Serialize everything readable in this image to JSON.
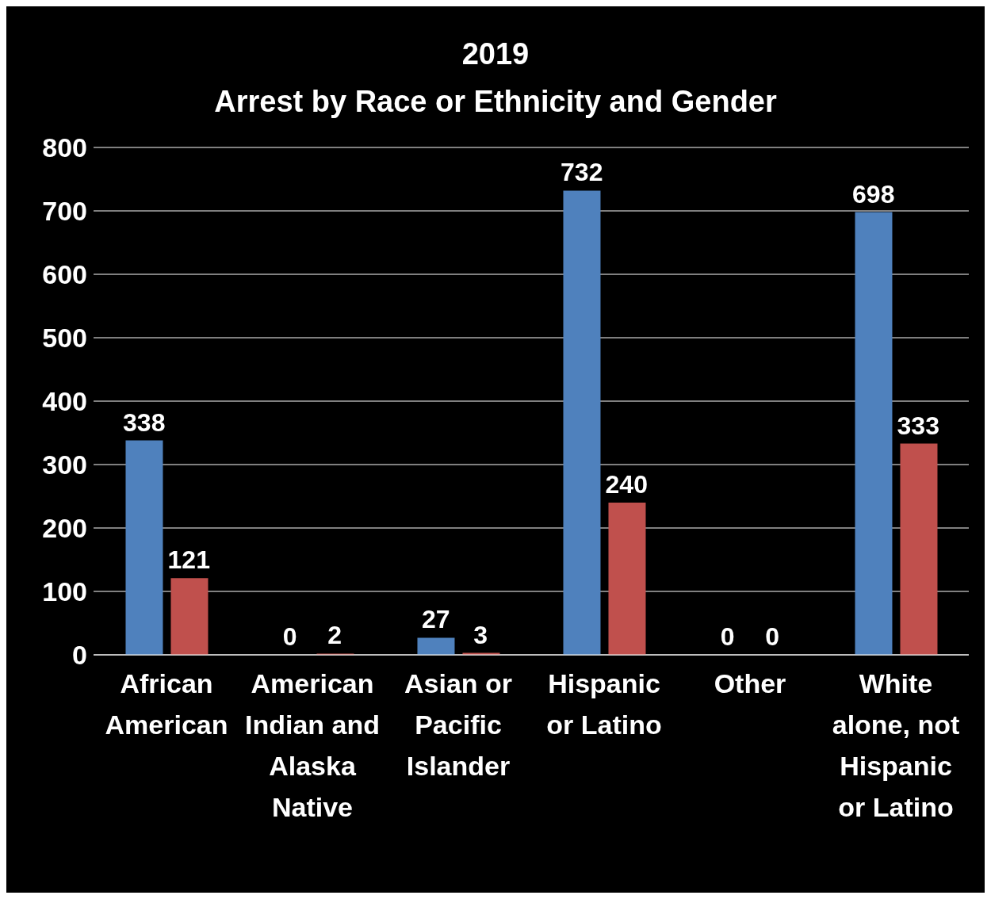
{
  "chart_data": {
    "type": "bar",
    "title": "2019",
    "subtitle": "Arrest by Race or Ethnicity and Gender",
    "categories": [
      "African American",
      "American Indian and Alaska Native",
      "Asian or Pacific Islander",
      "Hispanic or Latino",
      "Other",
      "White alone, not Hispanic or Latino"
    ],
    "series": [
      {
        "color": "#4f81bd",
        "values": [
          338,
          0,
          27,
          732,
          0,
          698
        ]
      },
      {
        "color": "#c0504d",
        "values": [
          121,
          2,
          3,
          240,
          0,
          333
        ]
      }
    ],
    "ylim": [
      0,
      800
    ],
    "yticks": [
      0,
      100,
      200,
      300,
      400,
      500,
      600,
      700,
      800
    ],
    "grid": "y",
    "legend": false,
    "data_labels": true
  }
}
